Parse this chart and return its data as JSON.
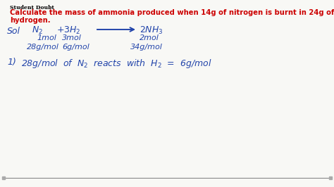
{
  "bg_color": "#f8f8f5",
  "label_student_doubt": "Student Doubt",
  "title_line1": "Calculate the mass of ammonia produced when 14g of nitrogen is burnt in 24g of",
  "title_line2": "hydrogen.",
  "title_color": "#cc0000",
  "label_color": "#000000",
  "hw_color": "#2244aa",
  "bottom_bar_color": "#c8c8c8",
  "bottom_bg": "#1a1a1a"
}
